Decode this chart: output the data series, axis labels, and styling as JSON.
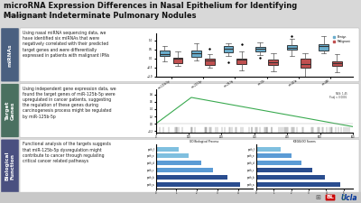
{
  "title": "microRNA Expression Differences in Nasal Epithelium for Identifying\nMalignant Indeterminate Pulmonary Nodules",
  "subtitle": "Bobing Ning, Poster #:",
  "bg_color": "#d8d8d8",
  "row_labels": [
    "miRNAs",
    "Target\nGenes",
    "Biological\nFunction"
  ],
  "row_label_bg": [
    "#4a6080",
    "#4a7060",
    "#4a5080"
  ],
  "row_texts": [
    "Using nasal miRNA sequencing data, we\nhave identified six miRNAs that were\nnegatively correlated with their predicted\ntarget genes and were differentially\nexpressed in patients with malignant IPNs",
    "Using independent gene expression data, we\nfound the target genes of miR-125b-5p were\nupregulated in cancer patients, suggesting\nthe regulation of these genes during\ncarcinogenesis process might be regulated\nby miR-125b-5p",
    "Functional analysis of the targets suggests\nthat miR-125b-5p dysregulation might\ncontribute to cancer through regulating\ncritical cancer related pathways"
  ],
  "box_benign_color": "#6aadcc",
  "box_malignant_color": "#c05050",
  "gsea_green": "#3aaa50",
  "bar_color1": "#2a4d8f",
  "bar_color2": "#5b9bd5",
  "bar_color3": "#7fbfdf"
}
